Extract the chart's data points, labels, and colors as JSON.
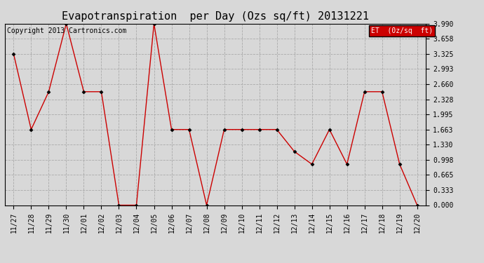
{
  "title": "Evapotranspiration  per Day (Ozs sq/ft) 20131221",
  "copyright": "Copyright 2013 Cartronics.com",
  "legend_label": "ET  (0z/sq  ft)",
  "dates": [
    "11/27",
    "11/28",
    "11/29",
    "11/30",
    "12/01",
    "12/02",
    "12/03",
    "12/04",
    "12/05",
    "12/06",
    "12/07",
    "12/08",
    "12/09",
    "12/10",
    "12/11",
    "12/12",
    "12/13",
    "12/14",
    "12/15",
    "12/16",
    "12/17",
    "12/18",
    "12/19",
    "12/20"
  ],
  "values": [
    3.325,
    1.663,
    2.494,
    3.99,
    2.494,
    2.494,
    0.0,
    0.0,
    3.99,
    1.663,
    1.663,
    0.0,
    1.663,
    1.663,
    1.663,
    1.663,
    1.18,
    0.9,
    1.663,
    0.9,
    2.494,
    2.494,
    0.9,
    0.0
  ],
  "line_color": "#cc0000",
  "marker_color": "#000000",
  "background_color": "#d8d8d8",
  "plot_bg_color": "#d8d8d8",
  "grid_color": "#aaaaaa",
  "ylim": [
    0.0,
    3.99
  ],
  "yticks": [
    0.0,
    0.333,
    0.665,
    0.998,
    1.33,
    1.663,
    1.995,
    2.328,
    2.66,
    2.993,
    3.325,
    3.658,
    3.99
  ],
  "legend_bg": "#cc0000",
  "legend_text_color": "#ffffff",
  "title_fontsize": 11,
  "tick_fontsize": 7,
  "copyright_fontsize": 7
}
